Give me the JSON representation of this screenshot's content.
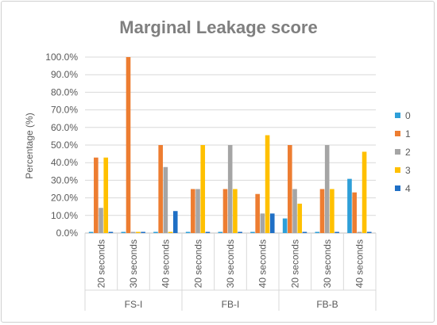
{
  "chart_data": {
    "type": "bar",
    "title": "Marginal Leakage score",
    "ylabel": "Percentage (%)",
    "xlabel": "",
    "ylim": [
      0,
      100
    ],
    "ytick_step": 10,
    "ytick_labels": [
      "0.0%",
      "10.0%",
      "20.0%",
      "30.0%",
      "40.0%",
      "50.0%",
      "60.0%",
      "70.0%",
      "80.0%",
      "90.0%",
      "100.0%"
    ],
    "grid": "horizontal",
    "legend_position": "right",
    "groups": [
      {
        "label": "FS-I",
        "categories": [
          "20 seconds",
          "30 seconds",
          "40 seconds"
        ]
      },
      {
        "label": "FB-I",
        "categories": [
          "20 seconds",
          "30 seconds",
          "40 seconds"
        ]
      },
      {
        "label": "FB-B",
        "categories": [
          "20 seconds",
          "30 seconds",
          "40 seconds"
        ]
      }
    ],
    "series": [
      {
        "name": "0",
        "color": "#2e9fd8",
        "values": [
          0,
          0,
          0,
          0,
          0,
          0,
          8.3,
          0,
          30.8
        ]
      },
      {
        "name": "1",
        "color": "#ed7d31",
        "values": [
          42.9,
          100,
          50,
          25,
          25,
          22.2,
          50,
          25,
          23.1
        ]
      },
      {
        "name": "2",
        "color": "#a5a5a5",
        "values": [
          14.3,
          0,
          37.5,
          25,
          50,
          11.1,
          25,
          50,
          0
        ]
      },
      {
        "name": "3",
        "color": "#ffc000",
        "values": [
          42.9,
          0,
          0,
          50,
          25,
          55.6,
          16.7,
          25,
          46.2
        ]
      },
      {
        "name": "4",
        "color": "#1f6fc5",
        "values": [
          0,
          0,
          12.5,
          0,
          0,
          11.1,
          0,
          0,
          0
        ]
      }
    ]
  }
}
